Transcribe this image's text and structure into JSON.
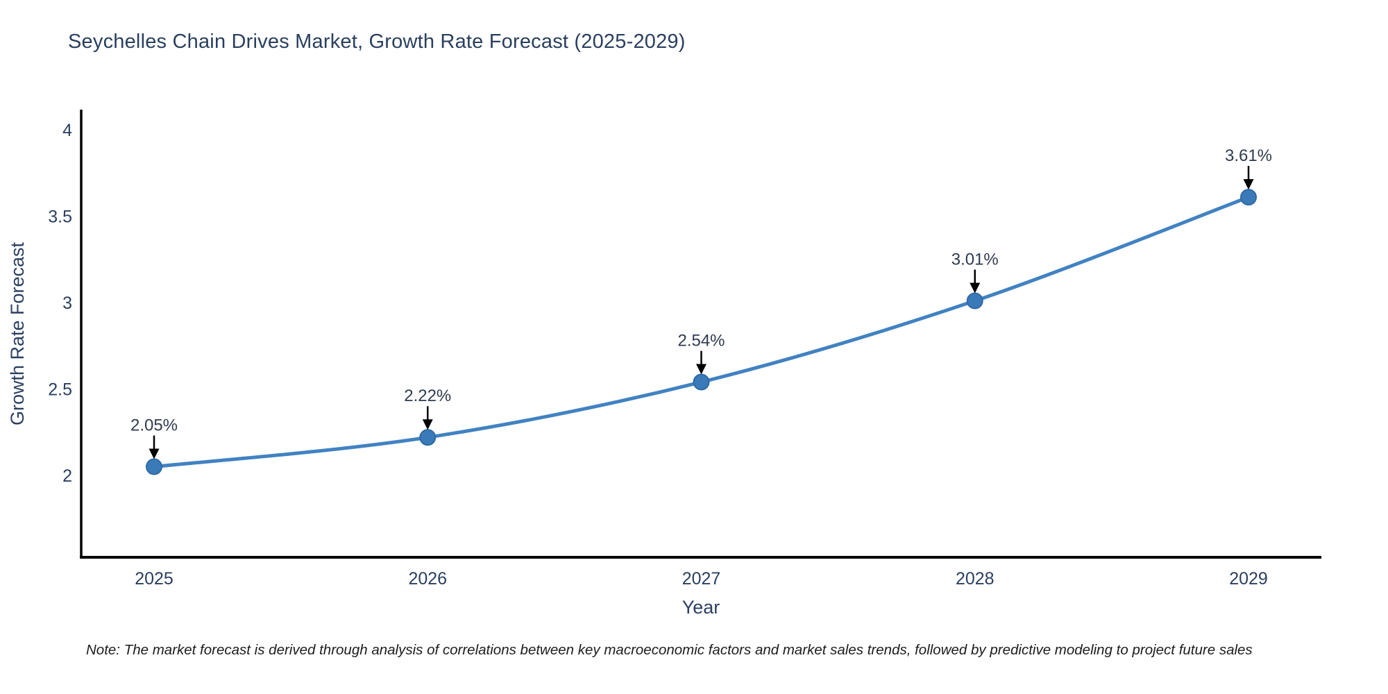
{
  "title": "Seychelles Chain Drives Market, Growth Rate Forecast (2025-2029)",
  "note": "Note: The market forecast is derived through analysis of correlations between key macroeconomic factors and market sales trends, followed by predictive modeling to project future sales",
  "chart_data": {
    "type": "line",
    "title": "Seychelles Chain Drives Market, Growth Rate Forecast (2025-2029)",
    "xlabel": "Year",
    "ylabel": "Growth Rate Forecast",
    "categories": [
      "2025",
      "2026",
      "2027",
      "2028",
      "2029"
    ],
    "x": [
      2025,
      2026,
      2027,
      2028,
      2029
    ],
    "values": [
      2.05,
      2.22,
      2.54,
      3.01,
      3.61
    ],
    "point_labels": [
      "2.05%",
      "2.22%",
      "2.54%",
      "3.01%",
      "3.61%"
    ],
    "yticks": [
      2,
      2.5,
      3,
      3.5,
      4
    ],
    "ytick_labels": [
      "2",
      "2.5",
      "3",
      "3.5",
      "4"
    ],
    "ylim": [
      1.53,
      4.11
    ],
    "grid": false,
    "legend": "none",
    "line_color": "#4182c2",
    "marker_color": "#3a7ab9",
    "marker_edge_color": "#2e6aa5",
    "text_color": "#2a3f5f",
    "axis_color": "#000000",
    "annotation_arrow_color": "#000000"
  }
}
